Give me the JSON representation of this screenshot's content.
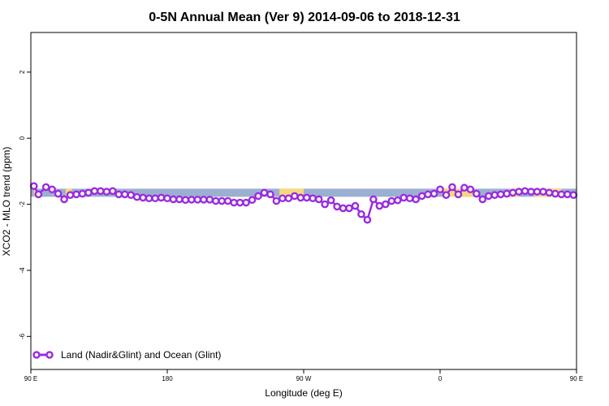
{
  "chart_data": {
    "type": "line",
    "title": "0-5N Annual Mean (Ver 9)   2014-09-06 to 2018-12-31",
    "xlabel": "Longitude (deg E)",
    "ylabel": "XCO2 - MLO trend (ppm)",
    "xlim": [
      90,
      450
    ],
    "ylim": [
      -7,
      3.2
    ],
    "x_ticks": [
      {
        "value": 90,
        "label": "90 E"
      },
      {
        "value": 180,
        "label": "180"
      },
      {
        "value": 270,
        "label": "90 W"
      },
      {
        "value": 360,
        "label": "0"
      },
      {
        "value": 450,
        "label": "90 E"
      },
      {
        "value": 540,
        "label": "180"
      }
    ],
    "y_ticks": [
      {
        "value": 2,
        "label": "2"
      },
      {
        "value": 0,
        "label": "0"
      },
      {
        "value": -2,
        "label": "-2"
      },
      {
        "value": -4,
        "label": "-4"
      },
      {
        "value": -6,
        "label": "-6"
      }
    ],
    "grid": false,
    "legend_position": "bottom-left",
    "colors": {
      "series": "#9a2be0",
      "ocean": "#9bb0d0",
      "land": "#f8d87a"
    },
    "surface_band": {
      "y": -1.65,
      "land_ranges": [
        [
          92,
          94
        ],
        [
          113,
          117
        ],
        [
          254,
          270
        ],
        [
          362,
          382
        ],
        [
          406,
          412
        ],
        [
          422,
          440
        ]
      ]
    },
    "series": [
      {
        "name": "Land (Nadir&Glint) and Ocean (Glint)",
        "x": [
          92,
          95,
          100,
          104,
          108,
          112,
          116,
          120,
          124,
          128,
          132,
          136,
          140,
          144,
          148,
          152,
          156,
          160,
          164,
          168,
          172,
          176,
          180,
          184,
          188,
          192,
          196,
          200,
          204,
          208,
          212,
          216,
          220,
          224,
          228,
          232,
          236,
          240,
          244,
          248,
          252,
          256,
          260,
          264,
          268,
          272,
          276,
          280,
          284,
          288,
          292,
          296,
          300,
          304,
          308,
          312,
          316,
          320,
          324,
          328,
          332,
          336,
          340,
          344,
          348,
          352,
          356,
          360,
          364,
          368,
          372,
          376,
          380,
          384,
          388,
          392,
          396,
          400,
          404,
          408,
          412,
          416,
          420,
          424,
          428,
          432,
          436,
          440,
          444,
          448
        ],
        "y": [
          -1.45,
          -1.7,
          -1.48,
          -1.55,
          -1.68,
          -1.85,
          -1.72,
          -1.7,
          -1.68,
          -1.65,
          -1.6,
          -1.6,
          -1.62,
          -1.6,
          -1.7,
          -1.7,
          -1.72,
          -1.78,
          -1.8,
          -1.82,
          -1.82,
          -1.8,
          -1.82,
          -1.85,
          -1.85,
          -1.87,
          -1.86,
          -1.86,
          -1.86,
          -1.86,
          -1.9,
          -1.9,
          -1.9,
          -1.95,
          -1.95,
          -1.95,
          -1.87,
          -1.75,
          -1.65,
          -1.7,
          -1.9,
          -1.82,
          -1.82,
          -1.75,
          -1.8,
          -1.8,
          -1.82,
          -1.85,
          -2.0,
          -1.88,
          -2.07,
          -2.12,
          -2.12,
          -2.05,
          -2.3,
          -2.47,
          -1.85,
          -2.05,
          -2.0,
          -1.9,
          -1.88,
          -1.8,
          -1.82,
          -1.85,
          -1.75,
          -1.7,
          -1.68,
          -1.55,
          -1.72,
          -1.48,
          -1.7,
          -1.5,
          -1.55,
          -1.68,
          -1.85,
          -1.75,
          -1.72,
          -1.7,
          -1.68,
          -1.65,
          -1.62,
          -1.6,
          -1.62,
          -1.62,
          -1.62,
          -1.65,
          -1.68,
          -1.7,
          -1.7,
          -1.72
        ]
      }
    ]
  }
}
